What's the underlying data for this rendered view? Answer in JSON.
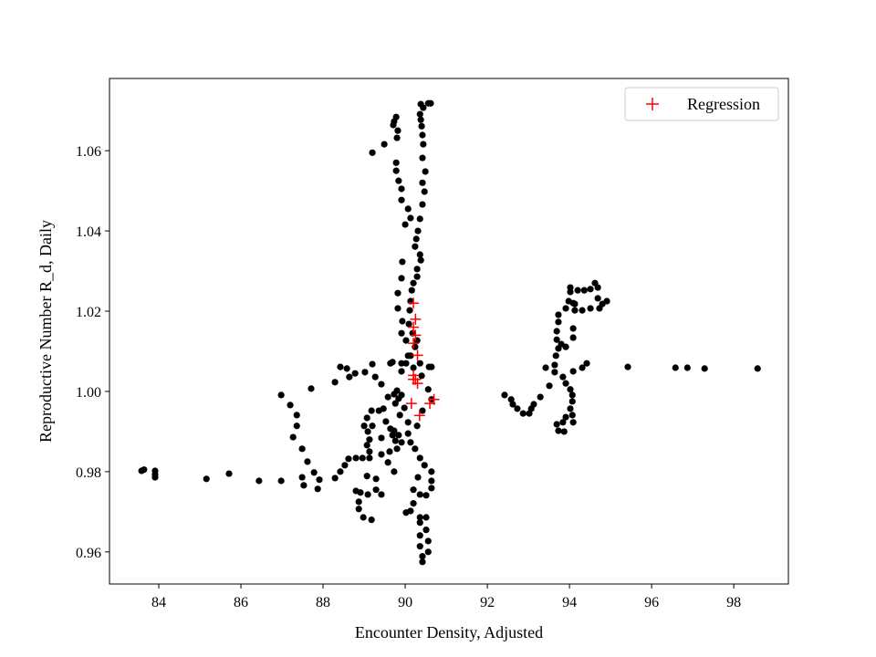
{
  "chart_data": {
    "type": "scatter",
    "title": "",
    "xlabel": "Encounter Density, Adjusted",
    "ylabel": "Reproductive Number R_d, Daily",
    "xlim": [
      82.8,
      99.33
    ],
    "ylim": [
      0.952,
      1.078
    ],
    "xticks": [
      84,
      86,
      88,
      90,
      92,
      94,
      96,
      98
    ],
    "yticks": [
      0.96,
      0.98,
      1.0,
      1.02,
      1.04,
      1.06
    ],
    "ytick_labels": [
      "0.96",
      "0.98",
      "1.00",
      "1.02",
      "1.04",
      "1.06"
    ],
    "grid": false,
    "legend": {
      "position": "top-right",
      "entries": [
        "Regression"
      ]
    },
    "series": [
      {
        "marker": "circle",
        "color": "#000000",
        "points": [
          [
            90.38,
            1.0716
          ],
          [
            90.44,
            1.0707
          ],
          [
            90.56,
            1.0718
          ],
          [
            90.62,
            1.0718
          ],
          [
            90.36,
            1.0691
          ],
          [
            90.38,
            1.0677
          ],
          [
            90.4,
            1.0661
          ],
          [
            90.42,
            1.0639
          ],
          [
            90.44,
            1.0616
          ],
          [
            90.42,
            1.0582
          ],
          [
            90.49,
            1.0548
          ],
          [
            90.42,
            1.052
          ],
          [
            90.47,
            1.0498
          ],
          [
            90.42,
            1.0466
          ],
          [
            90.36,
            1.043
          ],
          [
            90.31,
            1.04
          ],
          [
            90.27,
            1.038
          ],
          [
            90.24,
            1.0361
          ],
          [
            90.36,
            1.0341
          ],
          [
            90.38,
            1.0327
          ],
          [
            90.29,
            1.0305
          ],
          [
            90.29,
            1.0286
          ],
          [
            90.2,
            1.027
          ],
          [
            89.78,
            1.0684
          ],
          [
            89.73,
            1.0673
          ],
          [
            89.71,
            1.0664
          ],
          [
            89.82,
            1.065
          ],
          [
            89.8,
            1.0632
          ],
          [
            89.49,
            1.0616
          ],
          [
            89.2,
            1.0595
          ],
          [
            89.78,
            1.057
          ],
          [
            89.78,
            1.055
          ],
          [
            89.84,
            1.0525
          ],
          [
            89.91,
            1.0505
          ],
          [
            89.91,
            1.0477
          ],
          [
            90.07,
            1.0455
          ],
          [
            90.13,
            1.0432
          ],
          [
            90.0,
            1.0416
          ],
          [
            89.93,
            1.0323
          ],
          [
            89.91,
            1.0282
          ],
          [
            89.82,
            1.0245
          ],
          [
            89.82,
            1.0207
          ],
          [
            89.93,
            1.0175
          ],
          [
            89.91,
            1.0145
          ],
          [
            90.16,
            1.0252
          ],
          [
            90.13,
            1.0225
          ],
          [
            90.11,
            1.0202
          ],
          [
            90.09,
            1.0168
          ],
          [
            90.18,
            1.0145
          ],
          [
            90.24,
            1.0111
          ],
          [
            90.13,
            1.0089
          ],
          [
            90.02,
            1.007
          ],
          [
            89.91,
            1.007
          ],
          [
            89.69,
            1.0073
          ],
          [
            90.36,
            1.007
          ],
          [
            90.58,
            1.0061
          ],
          [
            90.4,
            1.0039
          ],
          [
            86.98,
            0.9991
          ],
          [
            87.2,
            0.9966
          ],
          [
            87.36,
            0.9941
          ],
          [
            87.36,
            0.9914
          ],
          [
            87.27,
            0.9886
          ],
          [
            87.49,
            0.9857
          ],
          [
            87.62,
            0.9825
          ],
          [
            87.78,
            0.9798
          ],
          [
            87.91,
            0.978
          ],
          [
            87.87,
            0.9757
          ],
          [
            87.53,
            0.9766
          ],
          [
            87.49,
            0.9786
          ],
          [
            86.98,
            0.9777
          ],
          [
            87.71,
            1.0007
          ],
          [
            88.29,
            1.0023
          ],
          [
            88.42,
            1.0061
          ],
          [
            88.58,
            1.0057
          ],
          [
            88.64,
            1.0036
          ],
          [
            88.78,
            1.0045
          ],
          [
            89.02,
            1.0048
          ],
          [
            89.2,
            1.0068
          ],
          [
            89.27,
            1.0036
          ],
          [
            89.42,
            1.0018
          ],
          [
            89.18,
            0.9952
          ],
          [
            89.07,
            0.9934
          ],
          [
            89.0,
            0.9914
          ],
          [
            89.09,
            0.99
          ],
          [
            89.13,
            0.988
          ],
          [
            89.07,
            0.9866
          ],
          [
            89.13,
            0.985
          ],
          [
            89.13,
            0.9834
          ],
          [
            88.96,
            0.9834
          ],
          [
            88.8,
            0.9834
          ],
          [
            88.62,
            0.9832
          ],
          [
            88.53,
            0.9816
          ],
          [
            88.42,
            0.98
          ],
          [
            88.29,
            0.9784
          ],
          [
            89.2,
            0.9914
          ],
          [
            89.42,
            0.9884
          ],
          [
            89.36,
            0.9952
          ],
          [
            89.47,
            0.9957
          ],
          [
            89.53,
            0.9925
          ],
          [
            89.64,
            0.9907
          ],
          [
            89.42,
            0.9843
          ],
          [
            89.58,
            0.9823
          ],
          [
            89.73,
            0.98
          ],
          [
            89.62,
            0.985
          ],
          [
            89.8,
            0.9857
          ],
          [
            89.91,
            0.9873
          ],
          [
            88.8,
            0.9752
          ],
          [
            88.91,
            0.9748
          ],
          [
            88.87,
            0.9725
          ],
          [
            88.87,
            0.9707
          ],
          [
            88.98,
            0.9686
          ],
          [
            89.18,
            0.968
          ],
          [
            89.09,
            0.9743
          ],
          [
            89.29,
            0.9782
          ],
          [
            89.29,
            0.9755
          ],
          [
            89.42,
            0.9743
          ],
          [
            89.07,
            0.9789
          ],
          [
            89.73,
            0.9993
          ],
          [
            89.8,
            1.0002
          ],
          [
            89.76,
            0.997
          ],
          [
            89.73,
            0.9902
          ],
          [
            89.84,
            0.9891
          ],
          [
            90.07,
            0.9895
          ],
          [
            90.13,
            0.9873
          ],
          [
            90.24,
            0.9857
          ],
          [
            90.36,
            0.9834
          ],
          [
            90.47,
            0.9816
          ],
          [
            90.31,
            0.9786
          ],
          [
            90.2,
            0.9755
          ],
          [
            90.36,
            0.9743
          ],
          [
            90.64,
            0.98
          ],
          [
            90.64,
            0.9777
          ],
          [
            90.64,
            0.9759
          ],
          [
            90.51,
            0.9741
          ],
          [
            90.2,
            0.9721
          ],
          [
            90.13,
            0.9702
          ],
          [
            90.02,
            0.9698
          ],
          [
            90.36,
            0.9686
          ],
          [
            90.51,
            0.9686
          ],
          [
            90.36,
            0.9673
          ],
          [
            90.51,
            0.9655
          ],
          [
            90.36,
            0.9641
          ],
          [
            90.56,
            0.9627
          ],
          [
            90.36,
            0.9614
          ],
          [
            90.56,
            0.96
          ],
          [
            90.42,
            0.9589
          ],
          [
            90.42,
            0.9575
          ],
          [
            89.64,
            1.007
          ],
          [
            89.91,
            1.005
          ],
          [
            90.07,
            1.0089
          ],
          [
            90.2,
            1.0059
          ],
          [
            90.02,
            1.0127
          ],
          [
            90.29,
            1.0127
          ],
          [
            90.64,
            1.0061
          ],
          [
            90.56,
            1.0005
          ],
          [
            90.64,
            0.998
          ],
          [
            90.42,
            0.9952
          ],
          [
            90.29,
            0.9914
          ],
          [
            90.07,
            0.9923
          ],
          [
            89.87,
            0.9941
          ],
          [
            89.98,
            0.9959
          ],
          [
            89.76,
            0.9877
          ],
          [
            89.69,
            0.9891
          ],
          [
            89.58,
            0.9986
          ],
          [
            89.84,
            0.9982
          ],
          [
            89.91,
            0.9991
          ],
          [
            83.58,
            0.9802
          ],
          [
            83.64,
            0.9805
          ],
          [
            83.91,
            0.9802
          ],
          [
            83.91,
            0.9793
          ],
          [
            83.91,
            0.9786
          ],
          [
            85.16,
            0.9782
          ],
          [
            85.71,
            0.9795
          ],
          [
            86.44,
            0.9777
          ],
          [
            92.42,
            0.9991
          ],
          [
            92.58,
            0.998
          ],
          [
            92.62,
            0.9968
          ],
          [
            92.73,
            0.9957
          ],
          [
            92.87,
            0.9945
          ],
          [
            93.02,
            0.9945
          ],
          [
            93.07,
            0.9957
          ],
          [
            93.13,
            0.9968
          ],
          [
            93.29,
            0.9986
          ],
          [
            93.51,
            1.0014
          ],
          [
            93.42,
            1.0059
          ],
          [
            93.64,
            1.0066
          ],
          [
            93.64,
            1.0048
          ],
          [
            93.84,
            1.0036
          ],
          [
            93.91,
            1.002
          ],
          [
            94.02,
            1.0005
          ],
          [
            94.07,
            0.9991
          ],
          [
            94.07,
            0.9975
          ],
          [
            94.02,
            0.9957
          ],
          [
            94.07,
            0.9941
          ],
          [
            94.09,
            0.9923
          ],
          [
            93.91,
            0.9936
          ],
          [
            93.84,
            0.9923
          ],
          [
            93.69,
            0.9918
          ],
          [
            93.73,
            0.9902
          ],
          [
            93.87,
            0.99
          ],
          [
            94.09,
            1.005
          ],
          [
            94.31,
            1.0059
          ],
          [
            94.42,
            1.007
          ],
          [
            93.67,
            1.0089
          ],
          [
            93.73,
            1.0107
          ],
          [
            93.8,
            1.0118
          ],
          [
            93.91,
            1.0111
          ],
          [
            94.09,
            1.0134
          ],
          [
            94.09,
            1.0157
          ],
          [
            93.69,
            1.0129
          ],
          [
            93.69,
            1.015
          ],
          [
            93.73,
            1.0173
          ],
          [
            93.73,
            1.0191
          ],
          [
            93.91,
            1.0207
          ],
          [
            93.98,
            1.0225
          ],
          [
            94.02,
            1.0248
          ],
          [
            94.02,
            1.0259
          ],
          [
            94.2,
            1.0252
          ],
          [
            94.36,
            1.0252
          ],
          [
            94.51,
            1.0255
          ],
          [
            94.62,
            1.027
          ],
          [
            94.69,
            1.0259
          ],
          [
            94.69,
            1.0232
          ],
          [
            94.51,
            1.0207
          ],
          [
            94.31,
            1.0202
          ],
          [
            94.13,
            1.0202
          ],
          [
            94.09,
            1.022
          ],
          [
            94.91,
            1.0225
          ],
          [
            94.8,
            1.0218
          ],
          [
            94.73,
            1.0207
          ],
          [
            94.13,
            1.0218
          ],
          [
            95.42,
            1.0061
          ],
          [
            96.58,
            1.0059
          ],
          [
            96.87,
            1.0059
          ],
          [
            97.29,
            1.0057
          ],
          [
            98.58,
            1.0057
          ]
        ]
      },
      {
        "name": "Regression",
        "marker": "plus",
        "color": "#ff0000",
        "points": [
          [
            90.2,
            1.022
          ],
          [
            90.25,
            1.018
          ],
          [
            90.2,
            1.016
          ],
          [
            90.25,
            1.014
          ],
          [
            90.2,
            1.012
          ],
          [
            90.3,
            1.009
          ],
          [
            90.2,
            1.004
          ],
          [
            90.25,
            1.003
          ],
          [
            90.3,
            1.002
          ],
          [
            90.2,
            1.003
          ],
          [
            90.15,
            0.997
          ],
          [
            90.35,
            0.994
          ],
          [
            90.6,
            0.997
          ],
          [
            90.7,
            0.998
          ]
        ]
      }
    ]
  }
}
